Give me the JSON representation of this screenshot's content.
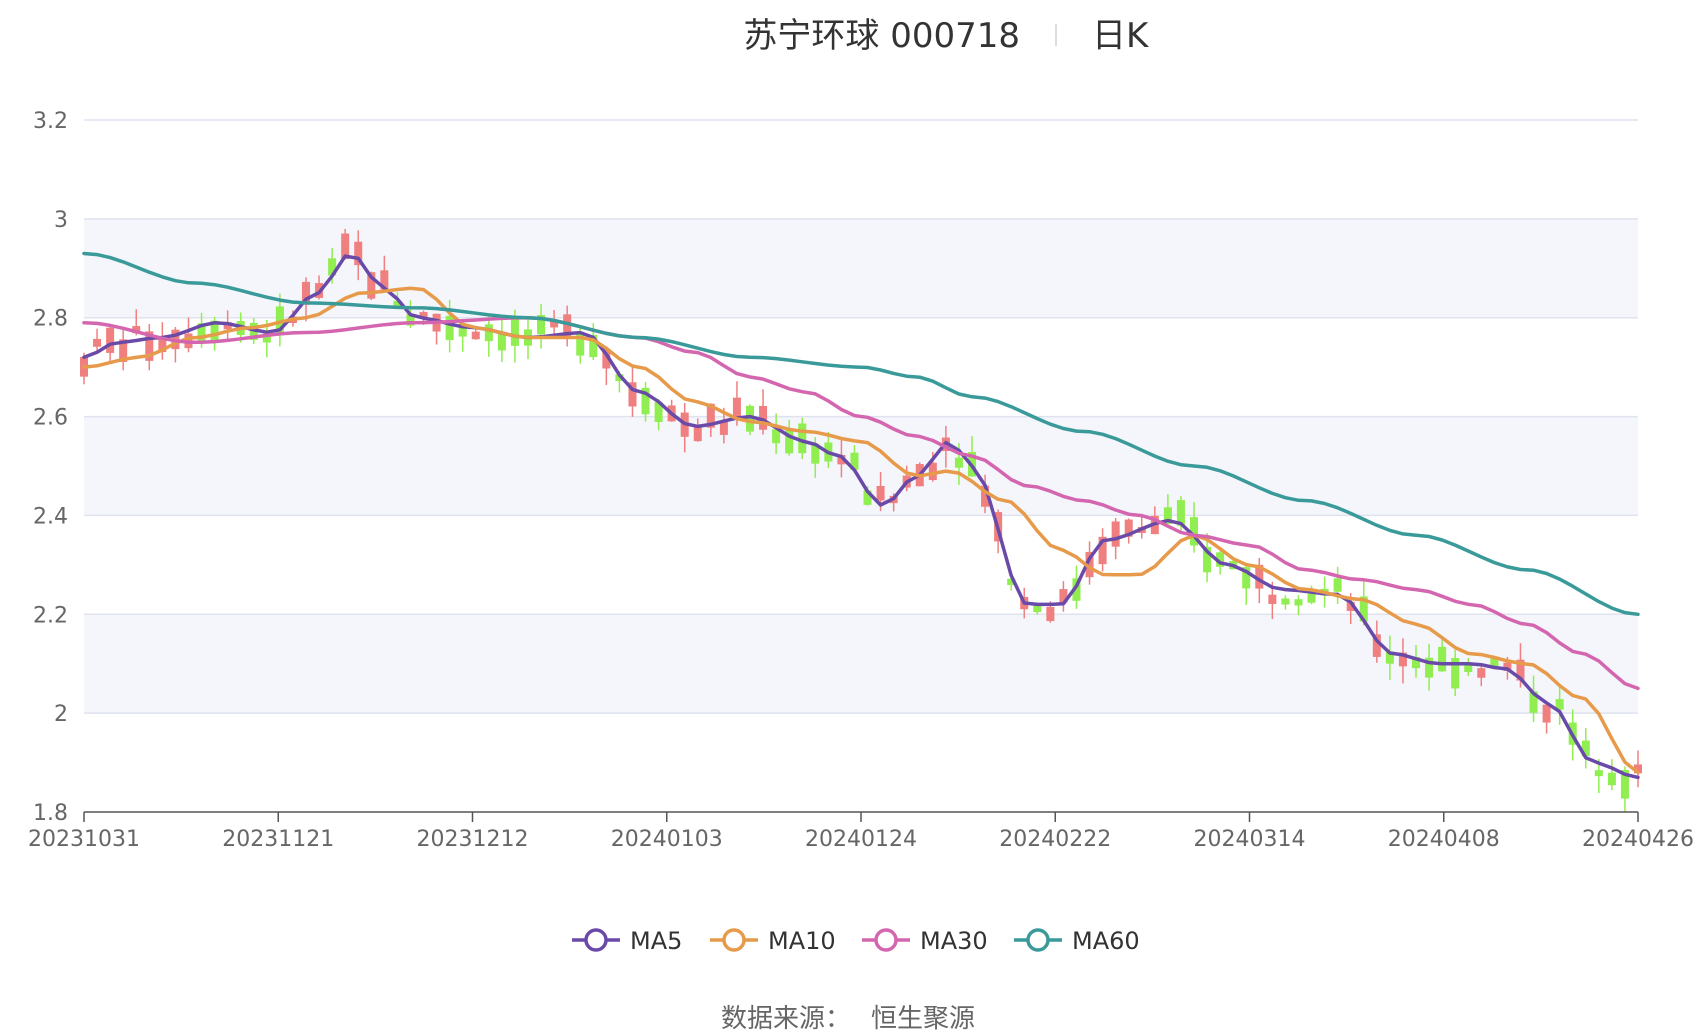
{
  "title": {
    "name": "苏宁环球 000718",
    "period": "日K"
  },
  "source": {
    "label": "数据来源：",
    "value": "恒生聚源"
  },
  "colors": {
    "up": "#f08080",
    "down": "#90ee50",
    "MA5": "#6a4aa8",
    "MA10": "#e69a4a",
    "MA30": "#d466b0",
    "MA60": "#3a9a9a",
    "band": "#f4f6fb",
    "grid": "#dfe3ef"
  },
  "chart_data": {
    "type": "candlestick",
    "x_tick_labels": [
      "20231031",
      "20231121",
      "20231212",
      "20240103",
      "20240124",
      "20240222",
      "20240314",
      "20240408",
      "20240426"
    ],
    "ylim": [
      1.8,
      3.2
    ],
    "y_ticks": [
      "1.8",
      "2",
      "2.2",
      "2.4",
      "2.6",
      "2.8",
      "3",
      "3.2"
    ],
    "legend": [
      "MA5",
      "MA10",
      "MA30",
      "MA60"
    ],
    "legend_position": "bottom-center",
    "n_bars": 120,
    "series": [
      {
        "name": "MA5",
        "anchors": [
          [
            0,
            2.72
          ],
          [
            3,
            2.75
          ],
          [
            7,
            2.76
          ],
          [
            12,
            2.79
          ],
          [
            17,
            2.77
          ],
          [
            21,
            2.85
          ],
          [
            24,
            2.93
          ],
          [
            27,
            2.86
          ],
          [
            30,
            2.8
          ],
          [
            35,
            2.78
          ],
          [
            40,
            2.76
          ],
          [
            45,
            2.77
          ],
          [
            50,
            2.65
          ],
          [
            55,
            2.58
          ],
          [
            60,
            2.6
          ],
          [
            65,
            2.55
          ],
          [
            68,
            2.52
          ],
          [
            72,
            2.42
          ],
          [
            75,
            2.48
          ],
          [
            78,
            2.55
          ],
          [
            80,
            2.5
          ],
          [
            85,
            2.22
          ],
          [
            88,
            2.22
          ],
          [
            92,
            2.35
          ],
          [
            98,
            2.39
          ],
          [
            103,
            2.3
          ],
          [
            108,
            2.25
          ],
          [
            113,
            2.24
          ],
          [
            118,
            2.12
          ],
          [
            122,
            2.1
          ],
          [
            125,
            2.1
          ],
          [
            128,
            2.09
          ],
          [
            132,
            2.02
          ],
          [
            136,
            1.9
          ],
          [
            140,
            1.87
          ]
        ]
      },
      {
        "name": "MA10",
        "anchors": [
          [
            0,
            2.7
          ],
          [
            5,
            2.72
          ],
          [
            10,
            2.76
          ],
          [
            15,
            2.78
          ],
          [
            20,
            2.8
          ],
          [
            25,
            2.85
          ],
          [
            30,
            2.86
          ],
          [
            35,
            2.78
          ],
          [
            40,
            2.76
          ],
          [
            45,
            2.76
          ],
          [
            50,
            2.7
          ],
          [
            55,
            2.63
          ],
          [
            60,
            2.59
          ],
          [
            65,
            2.57
          ],
          [
            70,
            2.55
          ],
          [
            75,
            2.48
          ],
          [
            78,
            2.49
          ],
          [
            83,
            2.43
          ],
          [
            88,
            2.33
          ],
          [
            92,
            2.28
          ],
          [
            95,
            2.28
          ],
          [
            100,
            2.36
          ],
          [
            105,
            2.3
          ],
          [
            110,
            2.25
          ],
          [
            115,
            2.23
          ],
          [
            120,
            2.18
          ],
          [
            125,
            2.12
          ],
          [
            130,
            2.1
          ],
          [
            135,
            2.03
          ],
          [
            140,
            1.88
          ]
        ]
      },
      {
        "name": "MA30",
        "anchors": [
          [
            0,
            2.79
          ],
          [
            10,
            2.75
          ],
          [
            20,
            2.77
          ],
          [
            30,
            2.79
          ],
          [
            40,
            2.8
          ],
          [
            50,
            2.76
          ],
          [
            55,
            2.73
          ],
          [
            60,
            2.68
          ],
          [
            65,
            2.65
          ],
          [
            70,
            2.6
          ],
          [
            75,
            2.56
          ],
          [
            80,
            2.52
          ],
          [
            85,
            2.46
          ],
          [
            90,
            2.43
          ],
          [
            95,
            2.4
          ],
          [
            100,
            2.36
          ],
          [
            105,
            2.34
          ],
          [
            110,
            2.29
          ],
          [
            115,
            2.27
          ],
          [
            120,
            2.25
          ],
          [
            125,
            2.22
          ],
          [
            130,
            2.18
          ],
          [
            135,
            2.12
          ],
          [
            140,
            2.05
          ]
        ]
      },
      {
        "name": "MA60",
        "anchors": [
          [
            0,
            2.93
          ],
          [
            10,
            2.87
          ],
          [
            20,
            2.83
          ],
          [
            30,
            2.82
          ],
          [
            40,
            2.8
          ],
          [
            50,
            2.76
          ],
          [
            60,
            2.72
          ],
          [
            70,
            2.7
          ],
          [
            75,
            2.68
          ],
          [
            80,
            2.64
          ],
          [
            90,
            2.57
          ],
          [
            100,
            2.5
          ],
          [
            110,
            2.43
          ],
          [
            120,
            2.36
          ],
          [
            130,
            2.29
          ],
          [
            140,
            2.2
          ]
        ]
      }
    ]
  }
}
